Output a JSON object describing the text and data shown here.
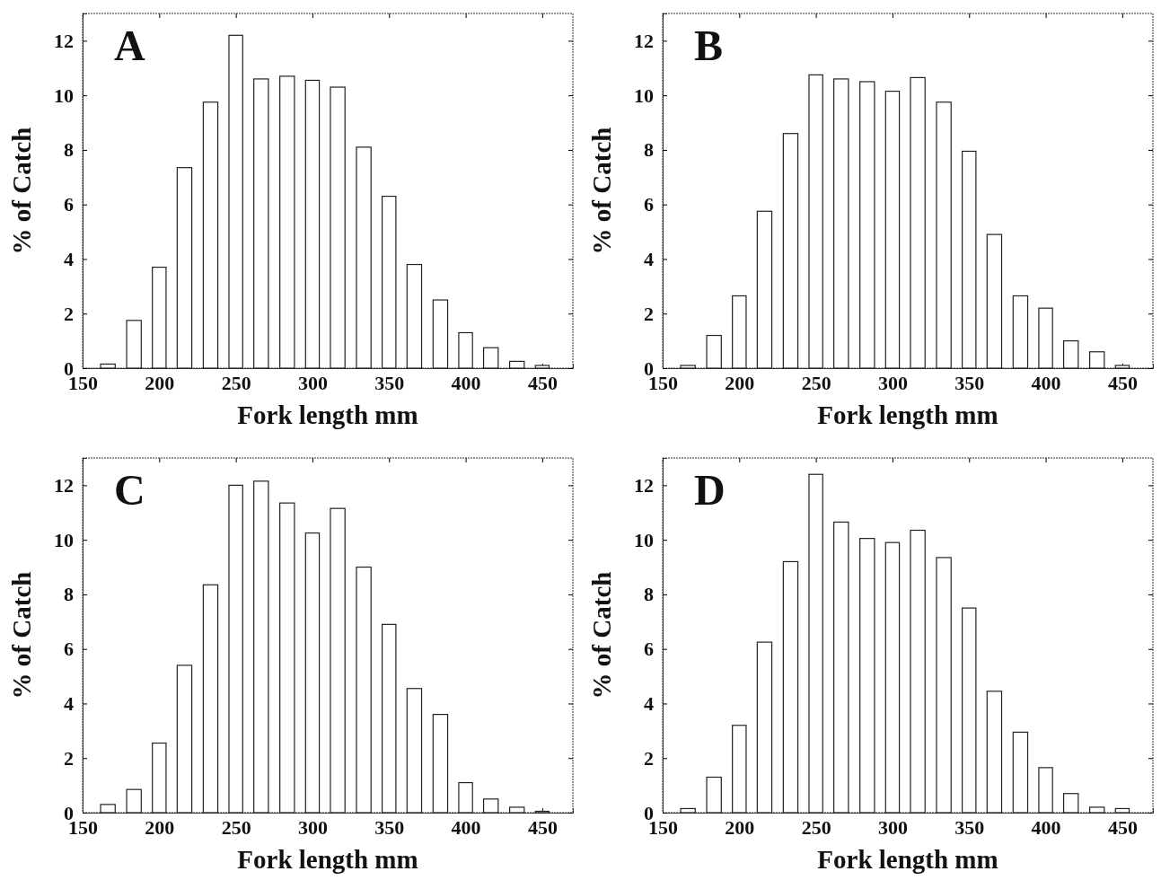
{
  "chart_data": [
    {
      "type": "histogram",
      "title": "A",
      "xlabel": "Fork length mm",
      "ylabel": "% of Catch",
      "bins": [
        158,
        175,
        192,
        208,
        225,
        242,
        258,
        275,
        292,
        308,
        325,
        342,
        358,
        375,
        392,
        408,
        425,
        442,
        458
      ],
      "values": [
        0.15,
        1.75,
        3.7,
        7.35,
        9.75,
        12.2,
        10.6,
        10.7,
        10.55,
        10.3,
        8.1,
        6.3,
        3.8,
        2.5,
        1.3,
        0.75,
        0.25,
        0.1
      ],
      "color": "#ffffff",
      "xlim": [
        150,
        470
      ],
      "xticks": [
        150,
        200,
        250,
        300,
        350,
        400,
        450
      ],
      "ylim": [
        0,
        13
      ],
      "yticks": [
        0,
        2,
        4,
        6,
        8,
        10,
        12
      ],
      "grid": false
    },
    {
      "type": "histogram",
      "title": "B",
      "xlabel": "Fork length mm",
      "ylabel": "% of Catch",
      "bins": [
        158,
        175,
        192,
        208,
        225,
        242,
        258,
        275,
        292,
        308,
        325,
        342,
        358,
        375,
        392,
        408,
        425,
        442,
        458
      ],
      "values": [
        0.1,
        1.2,
        2.65,
        5.75,
        8.6,
        10.75,
        10.6,
        10.5,
        10.15,
        10.65,
        9.75,
        7.95,
        4.9,
        2.65,
        2.2,
        1.0,
        0.6,
        0.1
      ],
      "color": "#ffffff",
      "xlim": [
        150,
        470
      ],
      "xticks": [
        150,
        200,
        250,
        300,
        350,
        400,
        450
      ],
      "ylim": [
        0,
        13
      ],
      "yticks": [
        0,
        2,
        4,
        6,
        8,
        10,
        12
      ],
      "grid": false
    },
    {
      "type": "histogram",
      "title": "C",
      "xlabel": "Fork length mm",
      "ylabel": "% of Catch",
      "bins": [
        158,
        175,
        192,
        208,
        225,
        242,
        258,
        275,
        292,
        308,
        325,
        342,
        358,
        375,
        392,
        408,
        425,
        442,
        458
      ],
      "values": [
        0.3,
        0.85,
        2.55,
        5.4,
        8.35,
        12.0,
        12.15,
        11.35,
        10.25,
        11.15,
        9.0,
        6.9,
        4.55,
        3.6,
        1.1,
        0.5,
        0.2,
        0.05
      ],
      "color": "#ffffff",
      "xlim": [
        150,
        470
      ],
      "xticks": [
        150,
        200,
        250,
        300,
        350,
        400,
        450
      ],
      "ylim": [
        0,
        13
      ],
      "yticks": [
        0,
        2,
        4,
        6,
        8,
        10,
        12
      ],
      "grid": false
    },
    {
      "type": "histogram",
      "title": "D",
      "xlabel": "Fork length mm",
      "ylabel": "% of Catch",
      "bins": [
        158,
        175,
        192,
        208,
        225,
        242,
        258,
        275,
        292,
        308,
        325,
        342,
        358,
        375,
        392,
        408,
        425,
        442,
        458
      ],
      "values": [
        0.15,
        1.3,
        3.2,
        6.25,
        9.2,
        12.4,
        10.65,
        10.05,
        9.9,
        10.35,
        9.35,
        7.5,
        4.45,
        2.95,
        1.65,
        0.7,
        0.2,
        0.15
      ],
      "color": "#ffffff",
      "xlim": [
        150,
        470
      ],
      "xticks": [
        150,
        200,
        250,
        300,
        350,
        400,
        450
      ],
      "ylim": [
        0,
        13
      ],
      "yticks": [
        0,
        2,
        4,
        6,
        8,
        10,
        12
      ],
      "grid": false
    }
  ]
}
